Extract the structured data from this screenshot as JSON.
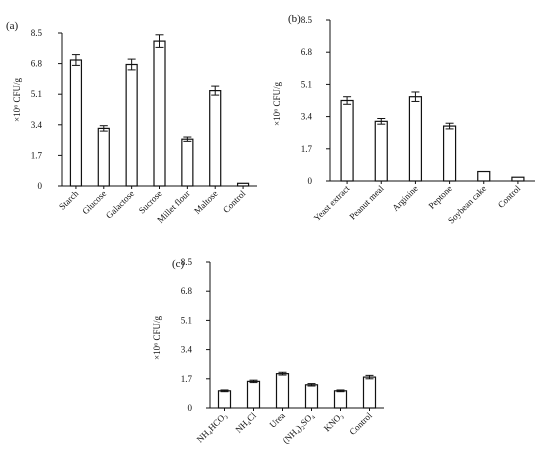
{
  "chart_data": [
    {
      "panel_label": "(a)",
      "type": "bar",
      "ylabel": "×10⁶ CFU/g",
      "ylim": [
        0,
        8.5
      ],
      "yticks": [
        "0",
        "1.7",
        "3.4",
        "5.1",
        "6.8",
        "8.5"
      ],
      "categories": [
        "Starch",
        "Glucose",
        "Galactose",
        "Sucrose",
        "Millet flour",
        "Maltose",
        "Control"
      ],
      "values": [
        7.0,
        3.2,
        6.75,
        8.05,
        2.6,
        5.3,
        0.15
      ],
      "errors": [
        0.3,
        0.15,
        0.3,
        0.35,
        0.12,
        0.25,
        0.0
      ]
    },
    {
      "panel_label": "(b)",
      "type": "bar",
      "ylabel": "×10⁶ CFU/g",
      "ylim": [
        0,
        8.5
      ],
      "yticks": [
        "0",
        "1.7",
        "3.4",
        "5.1",
        "6.8",
        "8.5"
      ],
      "categories": [
        "Yeast extract",
        "Peanut meal",
        "Arginine",
        "Peptone",
        "Soybean cake",
        "Control"
      ],
      "values": [
        4.25,
        3.15,
        4.45,
        2.9,
        0.5,
        0.2
      ],
      "errors": [
        0.2,
        0.15,
        0.25,
        0.15,
        0.0,
        0.0
      ]
    },
    {
      "panel_label": "(c)",
      "type": "bar",
      "ylabel": "×10⁶ CFU/g",
      "ylim": [
        0,
        8.5
      ],
      "yticks": [
        "0",
        "1.7",
        "3.4",
        "5.1",
        "6.8",
        "8.5"
      ],
      "categories": [
        "NH₄HCO₃",
        "NH₄Cl",
        "Urea",
        "(NH₄)₂SO₄",
        "KNO₃",
        "Control"
      ],
      "values": [
        1.0,
        1.55,
        2.0,
        1.35,
        1.0,
        1.8
      ],
      "errors": [
        0.05,
        0.07,
        0.08,
        0.07,
        0.05,
        0.1
      ]
    }
  ]
}
